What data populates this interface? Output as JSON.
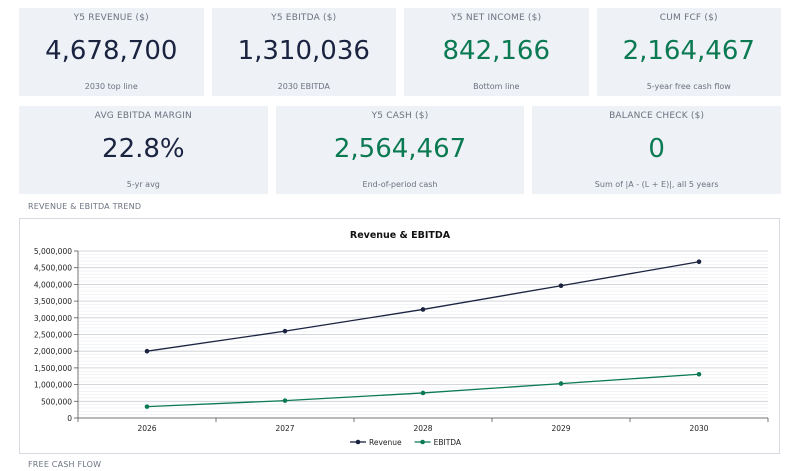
{
  "kpis_row1": [
    {
      "label": "Y5 REVENUE ($)",
      "value": "4,678,700",
      "sub": "2030 top line",
      "tone": "dark"
    },
    {
      "label": "Y5 EBITDA ($)",
      "value": "1,310,036",
      "sub": "2030 EBITDA",
      "tone": "dark"
    },
    {
      "label": "Y5 NET INCOME ($)",
      "value": "842,166",
      "sub": "Bottom line",
      "tone": "green"
    },
    {
      "label": "CUM FCF ($)",
      "value": "2,164,467",
      "sub": "5-year free cash flow",
      "tone": "green"
    }
  ],
  "kpis_row2": [
    {
      "label": "AVG EBITDA MARGIN",
      "value": "22.8%",
      "sub": "5-yr avg",
      "tone": "dark"
    },
    {
      "label": "Y5 CASH ($)",
      "value": "2,564,467",
      "sub": "End-of-period cash",
      "tone": "green"
    },
    {
      "label": "BALANCE CHECK ($)",
      "value": "0",
      "sub": "Sum of |A - (L + E)|, all 5 years",
      "tone": "green"
    }
  ],
  "sections": {
    "trend": "REVENUE & EBITDA TREND",
    "fcf": "FREE CASH FLOW"
  },
  "colors": {
    "dark": "#1a2340",
    "green": "#0b7a53",
    "card_bg": "#eef1f5"
  },
  "chart_data": {
    "type": "line",
    "title": "Revenue & EBITDA",
    "categories": [
      "2026",
      "2027",
      "2028",
      "2029",
      "2030"
    ],
    "series": [
      {
        "name": "Revenue",
        "color": "#1a2340",
        "values": [
          2000000,
          2600000,
          3250000,
          3960000,
          4678700
        ]
      },
      {
        "name": "EBITDA",
        "color": "#0b7a53",
        "values": [
          340000,
          520000,
          750000,
          1030000,
          1310036
        ]
      }
    ],
    "ylim": [
      0,
      5000000
    ],
    "yticks": [
      0,
      500000,
      1000000,
      1500000,
      2000000,
      2500000,
      3000000,
      3500000,
      4000000,
      4500000,
      5000000
    ],
    "ytick_labels": [
      "0",
      "500,000",
      "1,000,000",
      "1,500,000",
      "2,000,000",
      "2,500,000",
      "3,000,000",
      "3,500,000",
      "4,000,000",
      "4,500,000",
      "5,000,000"
    ],
    "grid": true,
    "legend": "bottom"
  }
}
